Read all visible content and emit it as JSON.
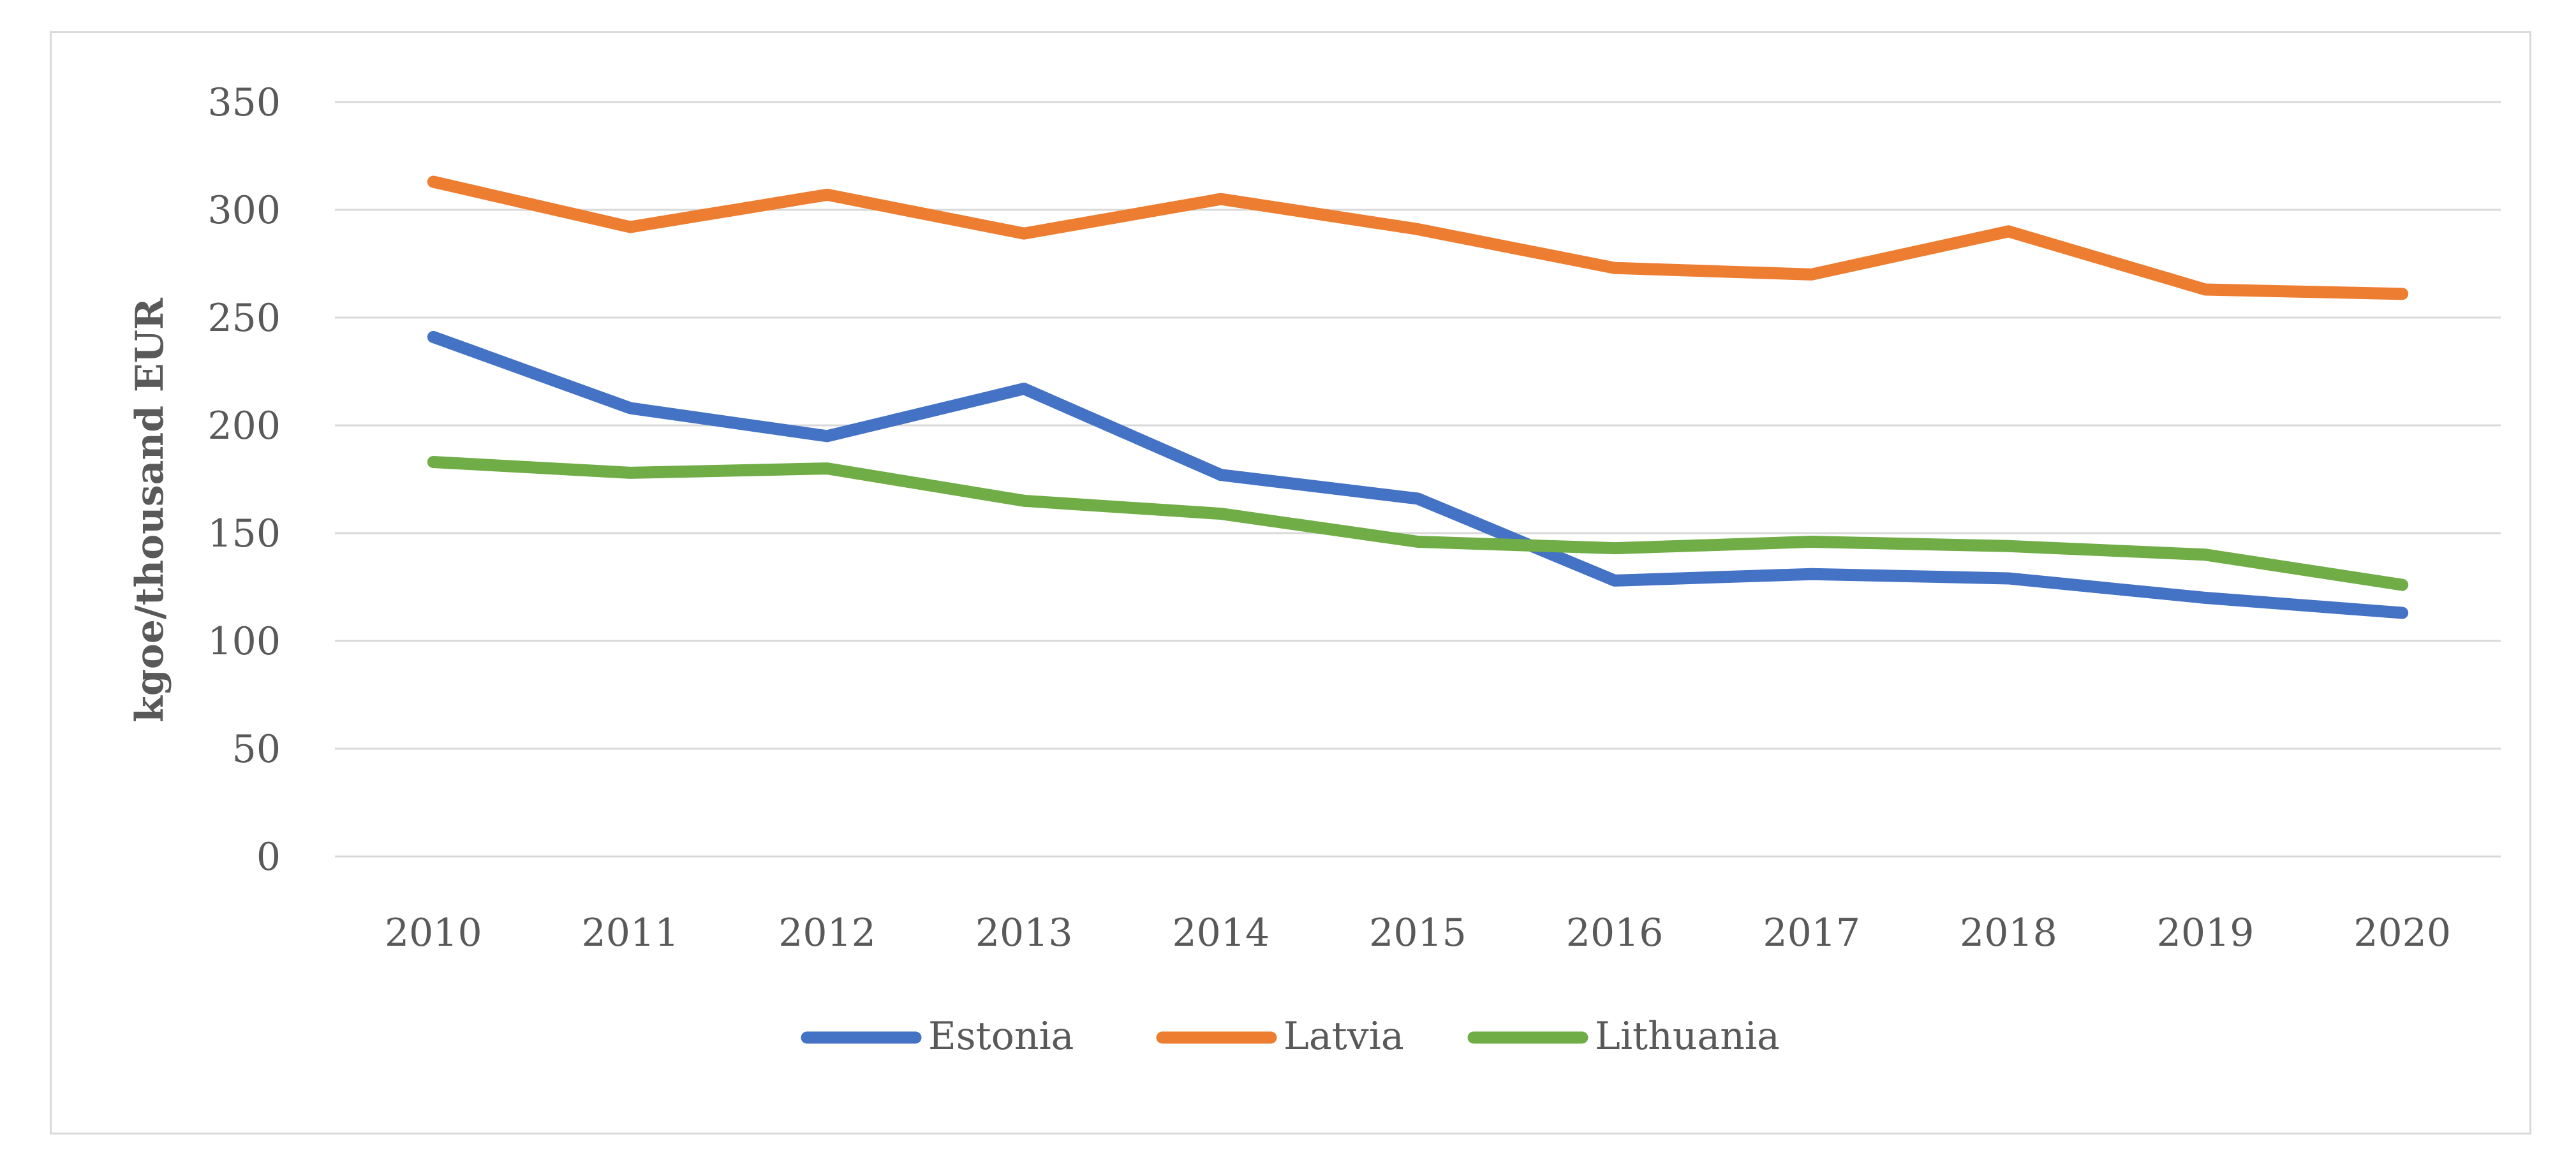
{
  "chart_data": {
    "type": "line",
    "title": "",
    "xlabel": "",
    "ylabel": "kgoe/thousand EUR",
    "ylim": [
      0,
      350
    ],
    "yticks": [
      0,
      50,
      100,
      150,
      200,
      250,
      300,
      350
    ],
    "categories": [
      "2010",
      "2011",
      "2012",
      "2013",
      "2014",
      "2015",
      "2016",
      "2017",
      "2018",
      "2019",
      "2020"
    ],
    "grid": true,
    "legend_position": "bottom",
    "series": [
      {
        "name": "Estonia",
        "color": "#4472c4",
        "values": [
          241,
          208,
          195,
          217,
          177,
          166,
          128,
          131,
          129,
          120,
          113
        ]
      },
      {
        "name": "Latvia",
        "color": "#ed7d31",
        "values": [
          313,
          292,
          307,
          289,
          305,
          291,
          273,
          270,
          290,
          263,
          261
        ]
      },
      {
        "name": "Lithuania",
        "color": "#70ad47",
        "values": [
          183,
          178,
          180,
          165,
          159,
          146,
          143,
          146,
          144,
          140,
          126
        ]
      }
    ]
  }
}
